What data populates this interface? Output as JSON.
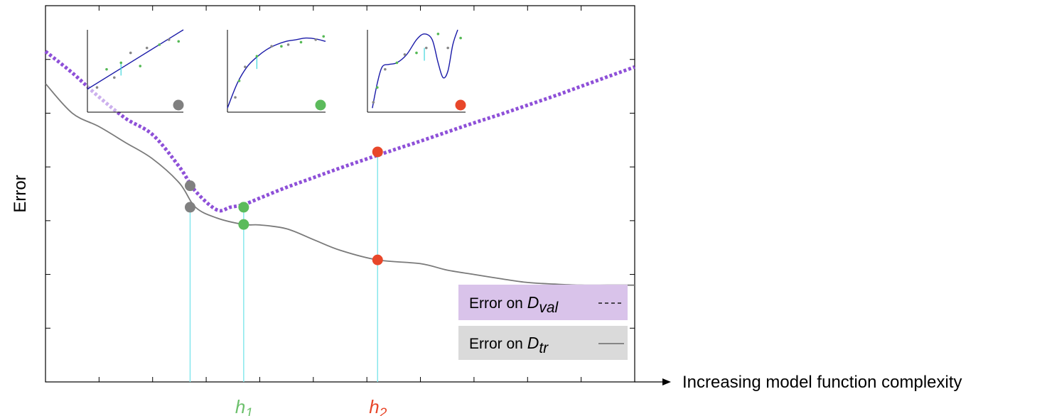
{
  "chart_data": {
    "type": "line",
    "title": "",
    "xlabel": "Increasing model function complexity",
    "ylabel": "Error",
    "xlim": [
      0,
      11
    ],
    "ylim": [
      0,
      7
    ],
    "grid": false,
    "legend_position": "bottom-right",
    "series": [
      {
        "name": "Error on D_val",
        "legend_prefix": "Error on ",
        "legend_symbol": "D",
        "legend_subscript": "val",
        "style": "dotted",
        "color": "#8e50d8",
        "x": [
          0,
          0.5,
          1.0,
          1.5,
          2.0,
          2.5,
          2.8,
          3.2,
          3.45,
          3.7,
          4.0,
          4.5,
          5.0,
          5.5,
          6.0,
          6.6,
          7.0,
          7.5,
          8.0,
          8.5,
          9.0,
          9.5,
          10.0,
          10.5,
          11.0
        ],
        "y": [
          6.15,
          5.75,
          5.3,
          4.9,
          4.6,
          4.0,
          3.55,
          3.2,
          3.25,
          3.3,
          3.42,
          3.62,
          3.8,
          3.98,
          4.15,
          4.35,
          4.48,
          4.65,
          4.82,
          4.98,
          5.15,
          5.32,
          5.5,
          5.68,
          5.86
        ]
      },
      {
        "name": "Error on D_tr",
        "legend_prefix": "Error on ",
        "legend_symbol": "D",
        "legend_subscript": "tr",
        "style": "solid",
        "color": "#7a7a7a",
        "x": [
          0,
          0.5,
          1.0,
          1.5,
          2.0,
          2.5,
          2.8,
          3.2,
          3.7,
          4.0,
          4.5,
          5.0,
          5.5,
          6.2,
          7.0,
          7.5,
          8.0,
          8.5,
          9.0,
          9.5,
          10.0,
          10.5,
          11.0
        ],
        "y": [
          5.55,
          5.0,
          4.75,
          4.45,
          4.15,
          3.7,
          3.25,
          3.05,
          2.93,
          2.92,
          2.85,
          2.65,
          2.45,
          2.27,
          2.2,
          2.08,
          2.0,
          1.92,
          1.85,
          1.82,
          1.8,
          1.8,
          1.8
        ]
      }
    ],
    "points": [
      {
        "x": 2.7,
        "y": 3.65,
        "color": "#808080"
      },
      {
        "x": 2.7,
        "y": 3.25,
        "color": "#808080"
      },
      {
        "x": 3.7,
        "y": 3.25,
        "color": "#5cbb5c"
      },
      {
        "x": 3.7,
        "y": 2.93,
        "color": "#5cbb5c"
      },
      {
        "x": 6.2,
        "y": 4.28,
        "color": "#e8472a"
      },
      {
        "x": 6.2,
        "y": 2.27,
        "color": "#e8472a"
      }
    ],
    "drop_lines": [
      {
        "x": 2.7,
        "y": 3.25
      },
      {
        "x": 3.7,
        "y": 3.25
      },
      {
        "x": 6.2,
        "y": 4.28
      }
    ],
    "drop_line_color": "#7fe6ec",
    "x_markers": [
      {
        "x": 3.7,
        "symbol": "h",
        "subscript": "1",
        "color": "#6cc06c"
      },
      {
        "x": 6.2,
        "symbol": "h",
        "subscript": "2",
        "color": "#e8472a"
      }
    ],
    "insets": [
      {
        "name": "underfit",
        "marker_color": "#808080",
        "curve_color": "#1a1aa8",
        "fit": "linear",
        "data": [
          [
            0.1,
            0.3
          ],
          [
            0.2,
            0.52
          ],
          [
            0.28,
            0.42
          ],
          [
            0.35,
            0.6
          ],
          [
            0.45,
            0.72
          ],
          [
            0.55,
            0.56
          ],
          [
            0.62,
            0.78
          ],
          [
            0.75,
            0.82
          ],
          [
            0.85,
            0.88
          ],
          [
            0.95,
            0.86
          ]
        ],
        "fit_points": [
          [
            0,
            0.28
          ],
          [
            1,
            1.0
          ]
        ],
        "residual": {
          "x": 0.35,
          "y": 0.6
        }
      },
      {
        "name": "good-fit",
        "marker_color": "#5cbb5c",
        "curve_color": "#1a1aa8",
        "fit": "curve",
        "data": [
          [
            0.08,
            0.18
          ],
          [
            0.12,
            0.38
          ],
          [
            0.18,
            0.55
          ],
          [
            0.3,
            0.68
          ],
          [
            0.45,
            0.8
          ],
          [
            0.55,
            0.8
          ],
          [
            0.62,
            0.82
          ],
          [
            0.75,
            0.85
          ],
          [
            0.9,
            0.88
          ],
          [
            0.98,
            0.92
          ]
        ],
        "fit_points": [
          [
            0,
            0.05
          ],
          [
            0.1,
            0.35
          ],
          [
            0.2,
            0.55
          ],
          [
            0.3,
            0.67
          ],
          [
            0.4,
            0.76
          ],
          [
            0.5,
            0.82
          ],
          [
            0.6,
            0.86
          ],
          [
            0.7,
            0.88
          ],
          [
            0.8,
            0.9
          ],
          [
            0.9,
            0.89
          ],
          [
            1.0,
            0.86
          ]
        ],
        "residual": {
          "x": 0.3,
          "y": 0.68
        }
      },
      {
        "name": "overfit",
        "marker_color": "#e8472a",
        "curve_color": "#1a1aa8",
        "fit": "wiggly",
        "data": [
          [
            0.06,
            0.12
          ],
          [
            0.1,
            0.3
          ],
          [
            0.18,
            0.52
          ],
          [
            0.3,
            0.6
          ],
          [
            0.38,
            0.7
          ],
          [
            0.5,
            0.72
          ],
          [
            0.6,
            0.78
          ],
          [
            0.72,
            0.95
          ],
          [
            0.82,
            0.78
          ],
          [
            0.95,
            0.9
          ]
        ],
        "fit_points": [
          [
            0.05,
            0.05
          ],
          [
            0.1,
            0.35
          ],
          [
            0.15,
            0.55
          ],
          [
            0.22,
            0.58
          ],
          [
            0.3,
            0.6
          ],
          [
            0.4,
            0.7
          ],
          [
            0.5,
            0.88
          ],
          [
            0.58,
            0.95
          ],
          [
            0.66,
            0.88
          ],
          [
            0.72,
            0.6
          ],
          [
            0.77,
            0.42
          ],
          [
            0.82,
            0.5
          ],
          [
            0.87,
            0.82
          ],
          [
            0.92,
            1.0
          ]
        ],
        "residual": {
          "x": 0.58,
          "y": 0.78
        }
      }
    ]
  }
}
